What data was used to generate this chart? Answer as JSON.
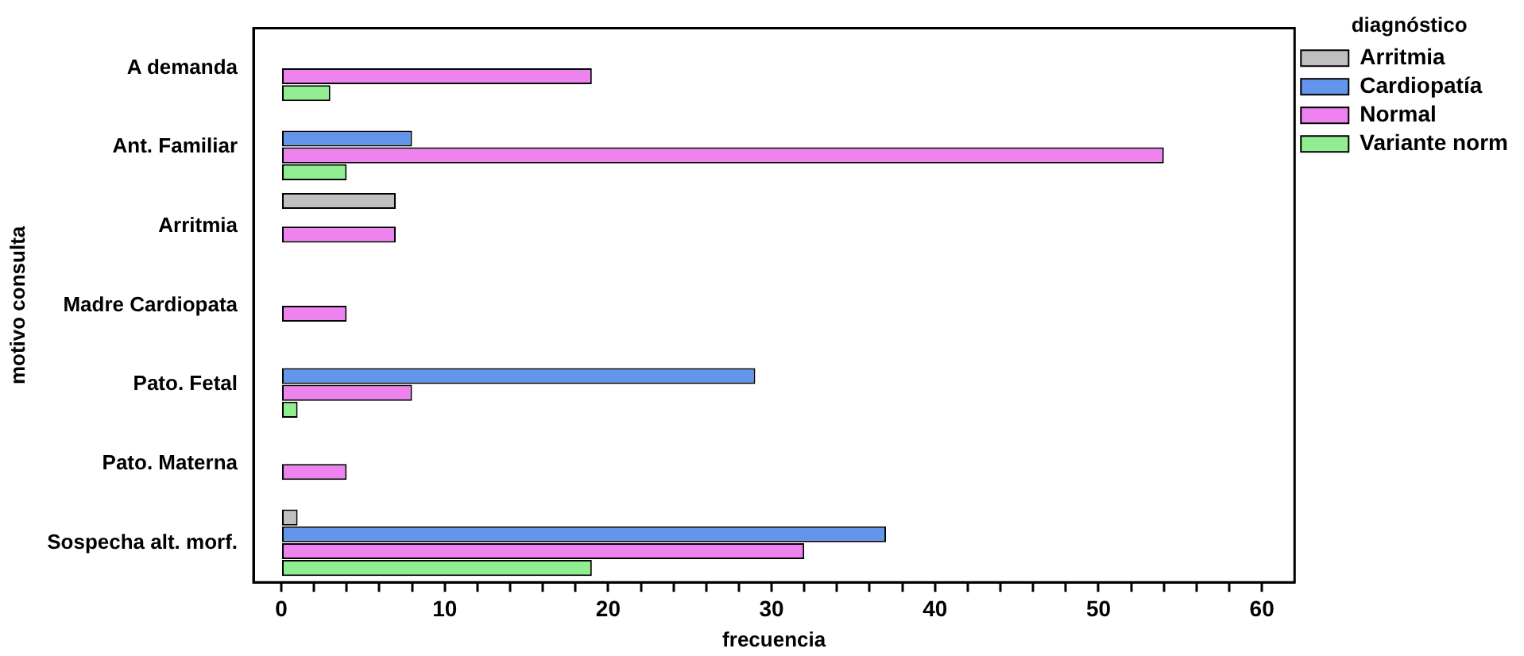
{
  "chart_data": {
    "type": "bar",
    "orientation": "horizontal",
    "xlabel": "frecuencia",
    "ylabel": "motivo consulta",
    "legend_title": "diagnóstico",
    "legend": "top right",
    "grid": false,
    "categories": [
      "A demanda",
      "Ant. Familiar",
      "Arritmia",
      "Madre Cardiopata",
      "Pato. Fetal",
      "Pato. Materna",
      "Sospecha alt. morf."
    ],
    "series": [
      {
        "name": "Arritmia",
        "color": "#c0c0c0",
        "values": [
          null,
          null,
          7,
          null,
          null,
          null,
          1
        ]
      },
      {
        "name": "Cardiopatía",
        "color": "#6495ed",
        "values": [
          null,
          8,
          null,
          null,
          29,
          null,
          37
        ]
      },
      {
        "name": "Normal",
        "color": "#ee82ee",
        "values": [
          19,
          54,
          7,
          4,
          8,
          4,
          32
        ]
      },
      {
        "name": "Variante norm",
        "color": "#90ee90",
        "values": [
          3,
          4,
          null,
          null,
          1,
          null,
          19
        ]
      }
    ],
    "xlim": [
      -1.7,
      62
    ],
    "xticks": [
      0,
      {
        "value": 2,
        "label": null
      },
      {
        "value": 4,
        "label": null
      },
      {
        "value": 6,
        "label": null
      },
      {
        "value": 8,
        "label": null
      },
      10,
      {
        "value": 12,
        "label": null
      },
      {
        "value": 14,
        "label": null
      },
      {
        "value": 16,
        "label": null
      },
      {
        "value": 18,
        "label": null
      },
      20,
      {
        "value": 22,
        "label": null
      },
      {
        "value": 24,
        "label": null
      },
      {
        "value": 26,
        "label": null
      },
      {
        "value": 28,
        "label": null
      },
      30,
      {
        "value": 32,
        "label": null
      },
      {
        "value": 34,
        "label": null
      },
      {
        "value": 36,
        "label": null
      },
      {
        "value": 38,
        "label": null
      },
      40,
      {
        "value": 42,
        "label": null
      },
      {
        "value": 44,
        "label": null
      },
      {
        "value": 46,
        "label": null
      },
      {
        "value": 48,
        "label": null
      },
      50,
      {
        "value": 52,
        "label": null
      },
      {
        "value": 54,
        "label": null
      },
      {
        "value": 56,
        "label": null
      },
      {
        "value": 58,
        "label": null
      },
      60
    ]
  }
}
